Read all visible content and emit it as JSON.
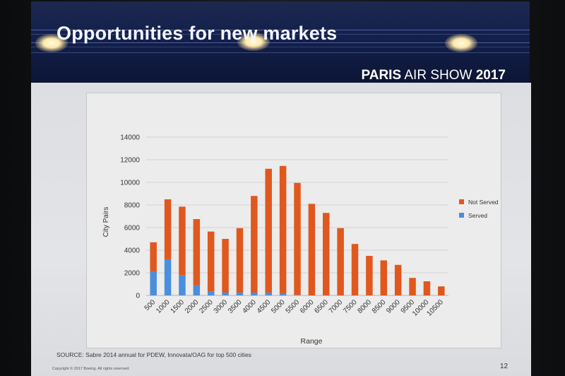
{
  "slide": {
    "title": "Opportunities for new markets",
    "event_brand_bold_1": "PARIS",
    "event_brand_regular": " AIR SHOW ",
    "event_brand_bold_2": "2017",
    "source_note": "SOURCE: Sabre 2014 annual for PDEW, Innovata/OAG for top 500 cities",
    "copyright": "Copyright © 2017 Boeing. All rights reserved.",
    "page_number": "12"
  },
  "colors": {
    "not_served": "#e0581e",
    "served": "#4a8fdc",
    "header_bg": "#13204a"
  },
  "chart_data": {
    "type": "bar",
    "stacked": true,
    "title": "",
    "xlabel": "Range",
    "ylabel": "City Pairs",
    "ylim": [
      0,
      14000
    ],
    "yticks": [
      0,
      2000,
      4000,
      6000,
      8000,
      10000,
      12000,
      14000
    ],
    "grid": true,
    "legend_position": "right",
    "categories": [
      "500",
      "1000",
      "1500",
      "2000",
      "2500",
      "3000",
      "3500",
      "4000",
      "4500",
      "5000",
      "5500",
      "6000",
      "6500",
      "7000",
      "7500",
      "8000",
      "8500",
      "9000",
      "9500",
      "10000",
      "10500"
    ],
    "series": [
      {
        "name": "Served",
        "color": "#4a8fdc",
        "values": [
          2100,
          3200,
          1800,
          900,
          350,
          250,
          250,
          250,
          250,
          150,
          50,
          0,
          0,
          0,
          0,
          0,
          0,
          0,
          0,
          0,
          0
        ]
      },
      {
        "name": "Not Served",
        "color": "#e0581e",
        "values": [
          2600,
          5300,
          6050,
          5850,
          5300,
          4750,
          5700,
          8550,
          10950,
          11300,
          9900,
          8100,
          7300,
          5950,
          4550,
          3500,
          3100,
          2700,
          1550,
          1250,
          800
        ]
      }
    ]
  }
}
